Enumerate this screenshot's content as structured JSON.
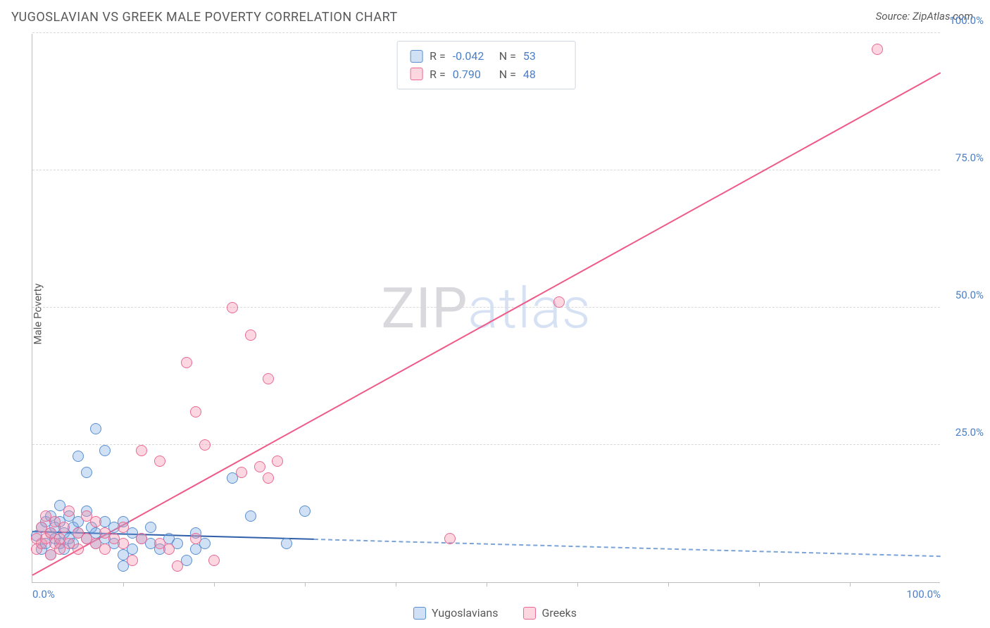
{
  "title": "YUGOSLAVIAN VS GREEK MALE POVERTY CORRELATION CHART",
  "source": "Source: ZipAtlas.com",
  "y_axis_label": "Male Poverty",
  "watermark": {
    "zip": "ZIP",
    "atlas": "atlas"
  },
  "chart": {
    "type": "scatter",
    "background_color": "#ffffff",
    "grid_color": "#d8d8d8",
    "axis_color": "#bdbdbd",
    "label_color": "#58595b",
    "value_color": "#4a7fc8",
    "xlim": [
      0,
      100
    ],
    "ylim": [
      0,
      100
    ],
    "y_ticks": [
      {
        "v": 25,
        "label": "25.0%"
      },
      {
        "v": 50,
        "label": "50.0%"
      },
      {
        "v": 75,
        "label": "75.0%"
      },
      {
        "v": 100,
        "label": "100.0%"
      }
    ],
    "x_ticks_major": [
      {
        "v": 0,
        "label": "0.0%"
      },
      {
        "v": 100,
        "label": "100.0%"
      }
    ],
    "x_ticks_minor": [
      10,
      20,
      30,
      40,
      50,
      60,
      70,
      80,
      90
    ],
    "marker_radius": 8,
    "marker_stroke_width": 1.5,
    "series": [
      {
        "name": "Yugoslavians",
        "fill": "rgba(120,165,225,0.35)",
        "stroke": "#5a8fd0",
        "r": -0.042,
        "n": 53,
        "trend": {
          "y_at_x0": 9.5,
          "y_at_x100": 5.0,
          "solid_until_x": 31,
          "solid_color": "#2f5fa8",
          "dashed_color": "#7aa4d8"
        },
        "points": [
          [
            0.5,
            8.5
          ],
          [
            1,
            10
          ],
          [
            1,
            6
          ],
          [
            1.5,
            11
          ],
          [
            1.5,
            7
          ],
          [
            2,
            9
          ],
          [
            2,
            12
          ],
          [
            2,
            5
          ],
          [
            2.5,
            8
          ],
          [
            2.5,
            10
          ],
          [
            3,
            7
          ],
          [
            3,
            11
          ],
          [
            3,
            14
          ],
          [
            3.5,
            6
          ],
          [
            3.5,
            9
          ],
          [
            4,
            8
          ],
          [
            4,
            12
          ],
          [
            4.5,
            10
          ],
          [
            4.5,
            7
          ],
          [
            5,
            9
          ],
          [
            5,
            11
          ],
          [
            5,
            23
          ],
          [
            6,
            8
          ],
          [
            6,
            13
          ],
          [
            6,
            20
          ],
          [
            6.5,
            10
          ],
          [
            7,
            7
          ],
          [
            7,
            9
          ],
          [
            7,
            28
          ],
          [
            8,
            8
          ],
          [
            8,
            11
          ],
          [
            8,
            24
          ],
          [
            9,
            7
          ],
          [
            9,
            10
          ],
          [
            10,
            5
          ],
          [
            10,
            3
          ],
          [
            10,
            11
          ],
          [
            11,
            6
          ],
          [
            11,
            9
          ],
          [
            12,
            8
          ],
          [
            13,
            7
          ],
          [
            13,
            10
          ],
          [
            14,
            6
          ],
          [
            15,
            8
          ],
          [
            16,
            7
          ],
          [
            17,
            4
          ],
          [
            18,
            6
          ],
          [
            18,
            9
          ],
          [
            19,
            7
          ],
          [
            22,
            19
          ],
          [
            24,
            12
          ],
          [
            28,
            7
          ],
          [
            30,
            13
          ]
        ]
      },
      {
        "name": "Greeks",
        "fill": "rgba(245,140,170,0.35)",
        "stroke": "#e86a94",
        "r": 0.79,
        "n": 48,
        "trend": {
          "y_at_x0": 1.5,
          "y_at_x100": 93,
          "solid_until_x": 100,
          "solid_color": "#ef5a88",
          "dashed_color": "#ef5a88"
        },
        "points": [
          [
            0.5,
            6
          ],
          [
            0.5,
            8
          ],
          [
            1,
            7
          ],
          [
            1,
            10
          ],
          [
            1.5,
            8
          ],
          [
            1.5,
            12
          ],
          [
            2,
            5
          ],
          [
            2,
            9
          ],
          [
            2.5,
            7
          ],
          [
            2.5,
            11
          ],
          [
            3,
            6
          ],
          [
            3,
            8
          ],
          [
            3.5,
            10
          ],
          [
            4,
            7
          ],
          [
            4,
            13
          ],
          [
            5,
            6
          ],
          [
            5,
            9
          ],
          [
            6,
            8
          ],
          [
            6,
            12
          ],
          [
            7,
            7
          ],
          [
            7,
            11
          ],
          [
            8,
            6
          ],
          [
            8,
            9
          ],
          [
            9,
            8
          ],
          [
            10,
            7
          ],
          [
            10,
            10
          ],
          [
            11,
            4
          ],
          [
            12,
            8
          ],
          [
            12,
            24
          ],
          [
            14,
            7
          ],
          [
            14,
            22
          ],
          [
            15,
            6
          ],
          [
            16,
            3
          ],
          [
            17,
            40
          ],
          [
            18,
            8
          ],
          [
            18,
            31
          ],
          [
            19,
            25
          ],
          [
            20,
            4
          ],
          [
            22,
            50
          ],
          [
            23,
            20
          ],
          [
            24,
            45
          ],
          [
            25,
            21
          ],
          [
            26,
            37
          ],
          [
            26,
            19
          ],
          [
            27,
            22
          ],
          [
            46,
            8
          ],
          [
            58,
            51
          ],
          [
            93,
            97
          ]
        ]
      }
    ]
  },
  "stats_box": {
    "rows": [
      {
        "swatch_fill": "rgba(120,165,225,0.35)",
        "swatch_stroke": "#5a8fd0",
        "r_label": "R =",
        "r_val": "-0.042",
        "n_label": "N =",
        "n_val": "53"
      },
      {
        "swatch_fill": "rgba(245,140,170,0.35)",
        "swatch_stroke": "#e86a94",
        "r_label": "R =",
        "r_val": "0.790",
        "n_label": "N =",
        "n_val": "48"
      }
    ]
  },
  "legend_bottom": [
    {
      "swatch_fill": "rgba(120,165,225,0.35)",
      "swatch_stroke": "#5a8fd0",
      "label": "Yugoslavians"
    },
    {
      "swatch_fill": "rgba(245,140,170,0.35)",
      "swatch_stroke": "#e86a94",
      "label": "Greeks"
    }
  ]
}
